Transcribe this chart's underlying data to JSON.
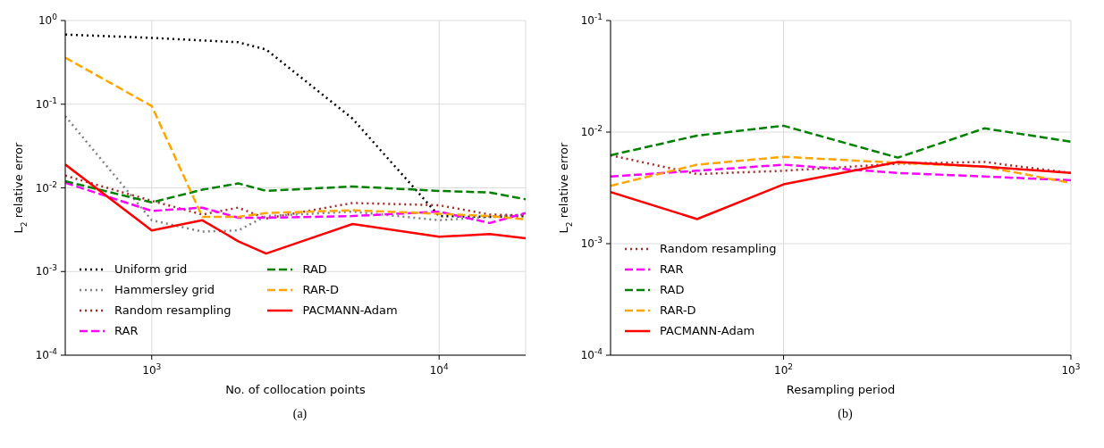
{
  "chart_data": [
    {
      "type": "line",
      "x": [
        500,
        1000,
        1500,
        2000,
        2500,
        5000,
        10000,
        15000,
        20000
      ],
      "xlabel": "No. of collocation points",
      "ylabel": "L$_{2}$ relative error",
      "log": "xy",
      "grid": true,
      "legend": "bottom left",
      "xlim": [
        500,
        20000
      ],
      "ylim": [
        0.0001,
        1
      ],
      "xticks": [
        {
          "value": 1000,
          "label": "10$^{3}$"
        },
        {
          "value": 10000,
          "label": "10$^{4}$"
        }
      ],
      "yticks": [
        {
          "value": 0.0001,
          "label": "10$^{-4}$"
        },
        {
          "value": 0.001,
          "label": "10$^{-3}$"
        },
        {
          "value": 0.01,
          "label": "10$^{-2}$"
        },
        {
          "value": 0.1,
          "label": "10$^{-1}$"
        },
        {
          "value": 1,
          "label": "10$^{0}$"
        }
      ],
      "annotations": [
        "(a)"
      ],
      "series": [
        {
          "name": "Uniform grid",
          "color": "#000000",
          "line_style": "dotted",
          "values": [
            0.68,
            0.62,
            null,
            0.55,
            0.45,
            0.067,
            0.0046,
            0.0045,
            0.0046
          ]
        },
        {
          "name": "Hammersley grid",
          "color": "#808080",
          "line_style": "dotted",
          "values": [
            0.072,
            0.0041,
            0.003,
            0.0031,
            0.0046,
            0.0052,
            0.0041,
            0.0045,
            0.0048
          ]
        },
        {
          "name": "Random resampling",
          "color": "#a52a2a",
          "line_style": "dotted",
          "values": [
            0.014,
            0.007,
            0.0048,
            0.0058,
            0.0043,
            0.0066,
            0.0062,
            0.0048,
            0.0047
          ]
        },
        {
          "name": "RAR",
          "color": "#ff00ff",
          "line_style": "dashed",
          "values": [
            0.0115,
            0.0053,
            0.0058,
            0.0044,
            0.0044,
            0.0046,
            0.0052,
            0.0038,
            0.005
          ]
        },
        {
          "name": "RAD",
          "color": "#008000",
          "line_style": "dashed",
          "values": [
            0.012,
            0.0067,
            0.0095,
            0.0113,
            0.0092,
            0.0104,
            0.0092,
            0.0088,
            0.0073
          ]
        },
        {
          "name": "RAR-D",
          "color": "#ffa500",
          "line_style": "dashed",
          "values": [
            0.36,
            0.095,
            0.0045,
            0.0045,
            0.005,
            0.0054,
            0.0049,
            0.0046,
            0.0042
          ]
        },
        {
          "name": "PACMANN-Adam",
          "color": "#ff0000",
          "line_style": "solid",
          "values": [
            0.019,
            0.0031,
            0.0041,
            0.0023,
            0.00164,
            0.0037,
            0.0026,
            0.0028,
            0.0025
          ]
        }
      ]
    },
    {
      "type": "line",
      "x": [
        25,
        50,
        100,
        250,
        500,
        1000
      ],
      "xlabel": "Resampling period",
      "ylabel": "L$_{2}$ relative error",
      "log": "xy",
      "grid": true,
      "legend": "bottom left",
      "xlim": [
        25,
        1000
      ],
      "ylim": [
        0.0001,
        0.1
      ],
      "xticks": [
        {
          "value": 100,
          "label": "10$^{2}$"
        },
        {
          "value": 1000,
          "label": "10$^{3}$"
        }
      ],
      "yticks": [
        {
          "value": 0.0001,
          "label": "10$^{-4}$"
        },
        {
          "value": 0.001,
          "label": "10$^{-3}$"
        },
        {
          "value": 0.01,
          "label": "10$^{-2}$"
        },
        {
          "value": 0.1,
          "label": "10$^{-1}$"
        }
      ],
      "annotations": [
        "(b)"
      ],
      "series": [
        {
          "name": "Random resampling",
          "color": "#a52a2a",
          "line_style": "dotted",
          "values": [
            0.0062,
            0.0042,
            0.0045,
            0.0052,
            0.0054,
            0.0043
          ]
        },
        {
          "name": "RAR",
          "color": "#ff00ff",
          "line_style": "dashed",
          "values": [
            0.004,
            0.0045,
            0.0051,
            0.0043,
            0.004,
            0.0037
          ]
        },
        {
          "name": "RAD",
          "color": "#008000",
          "line_style": "dashed",
          "values": [
            0.0062,
            0.0093,
            0.0114,
            0.0059,
            0.0108,
            0.0082
          ]
        },
        {
          "name": "RAR-D",
          "color": "#ffa500",
          "line_style": "dashed",
          "values": [
            0.0033,
            0.0051,
            0.006,
            0.0053,
            0.0049,
            0.0035
          ]
        },
        {
          "name": "PACMANN-Adam",
          "color": "#ff0000",
          "line_style": "solid",
          "values": [
            0.0029,
            0.00166,
            0.0034,
            0.0054,
            0.0049,
            0.0043
          ]
        }
      ]
    }
  ]
}
